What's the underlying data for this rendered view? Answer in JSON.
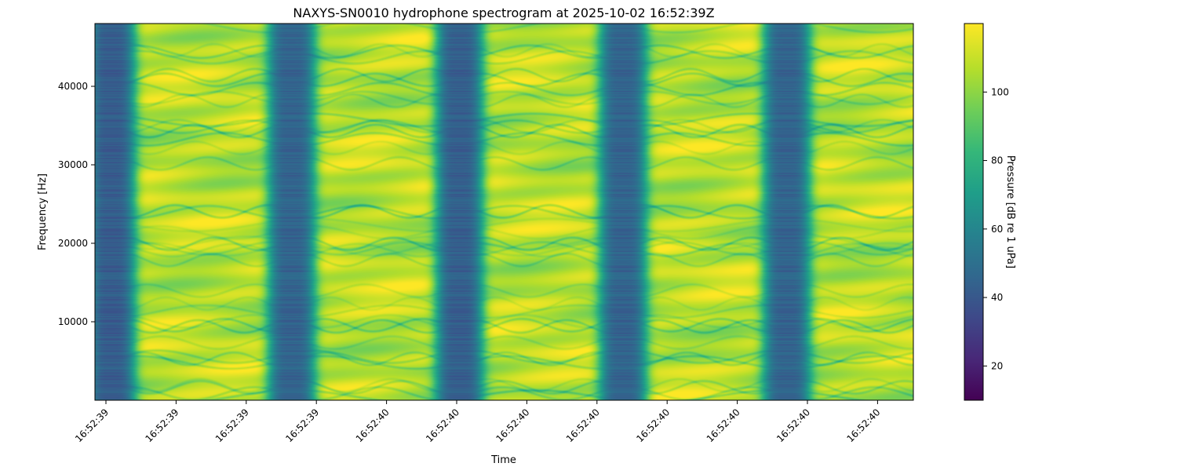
{
  "chart_data": {
    "type": "heatmap",
    "title": "NAXYS-SN0010 hydrophone spectrogram at 2025-10-02 16:52:39Z",
    "xlabel": "Time",
    "ylabel": "Frequency [Hz]",
    "colorbar_label": "Pressure [dB re 1 uPa]",
    "colormap": "viridis",
    "x_tick_labels": [
      "16:52:39",
      "16:52:39",
      "16:52:39",
      "16:52:39",
      "16:52:40",
      "16:52:40",
      "16:52:40",
      "16:52:40",
      "16:52:40",
      "16:52:40",
      "16:52:40",
      "16:52:40"
    ],
    "y_ticks": [
      10000,
      20000,
      30000,
      40000
    ],
    "ylim": [
      0,
      48000
    ],
    "colorbar_ticks": [
      20,
      40,
      60,
      80,
      100
    ],
    "colorbar_range": [
      10,
      120
    ],
    "grid": false,
    "x_range_fraction_per_tick": 0.0857,
    "quiet_bands": [
      {
        "center_fraction": 0.02,
        "level_db": 42
      },
      {
        "center_fraction": 0.24,
        "level_db": 45
      },
      {
        "center_fraction": 0.445,
        "level_db": 43
      },
      {
        "center_fraction": 0.645,
        "level_db": 45
      },
      {
        "center_fraction": 0.845,
        "level_db": 45
      }
    ],
    "loud_level_db": [
      100,
      118
    ]
  }
}
